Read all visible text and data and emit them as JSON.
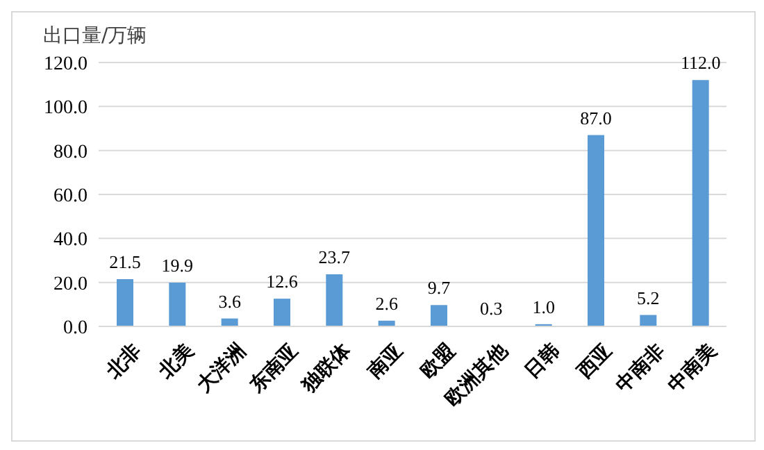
{
  "chart_data": {
    "type": "bar",
    "ylabel": "出口量/万辆",
    "categories": [
      "北非",
      "北美",
      "大洋洲",
      "东南亚",
      "独联体",
      "南亚",
      "欧盟",
      "欧洲其他",
      "日韩",
      "西亚",
      "中南非",
      "中南美"
    ],
    "values": [
      21.5,
      19.9,
      3.6,
      12.6,
      23.7,
      2.6,
      9.7,
      0.3,
      1.0,
      87.0,
      5.2,
      112.0
    ],
    "value_labels": [
      "21.5",
      "19.9",
      "3.6",
      "12.6",
      "23.7",
      "2.6",
      "9.7",
      "0.3",
      "1.0",
      "87.0",
      "5.2",
      "112.0"
    ],
    "color": "#5b9bd5",
    "ylim": [
      0,
      120
    ],
    "yticks": [
      {
        "value": 0,
        "label": "0.0"
      },
      {
        "value": 20,
        "label": "20.0"
      },
      {
        "value": 40,
        "label": "40.0"
      },
      {
        "value": 60,
        "label": "60.0"
      },
      {
        "value": 80,
        "label": "80.0"
      },
      {
        "value": 100,
        "label": "100.0"
      },
      {
        "value": 120,
        "label": "120.0"
      }
    ],
    "grid": "y"
  }
}
